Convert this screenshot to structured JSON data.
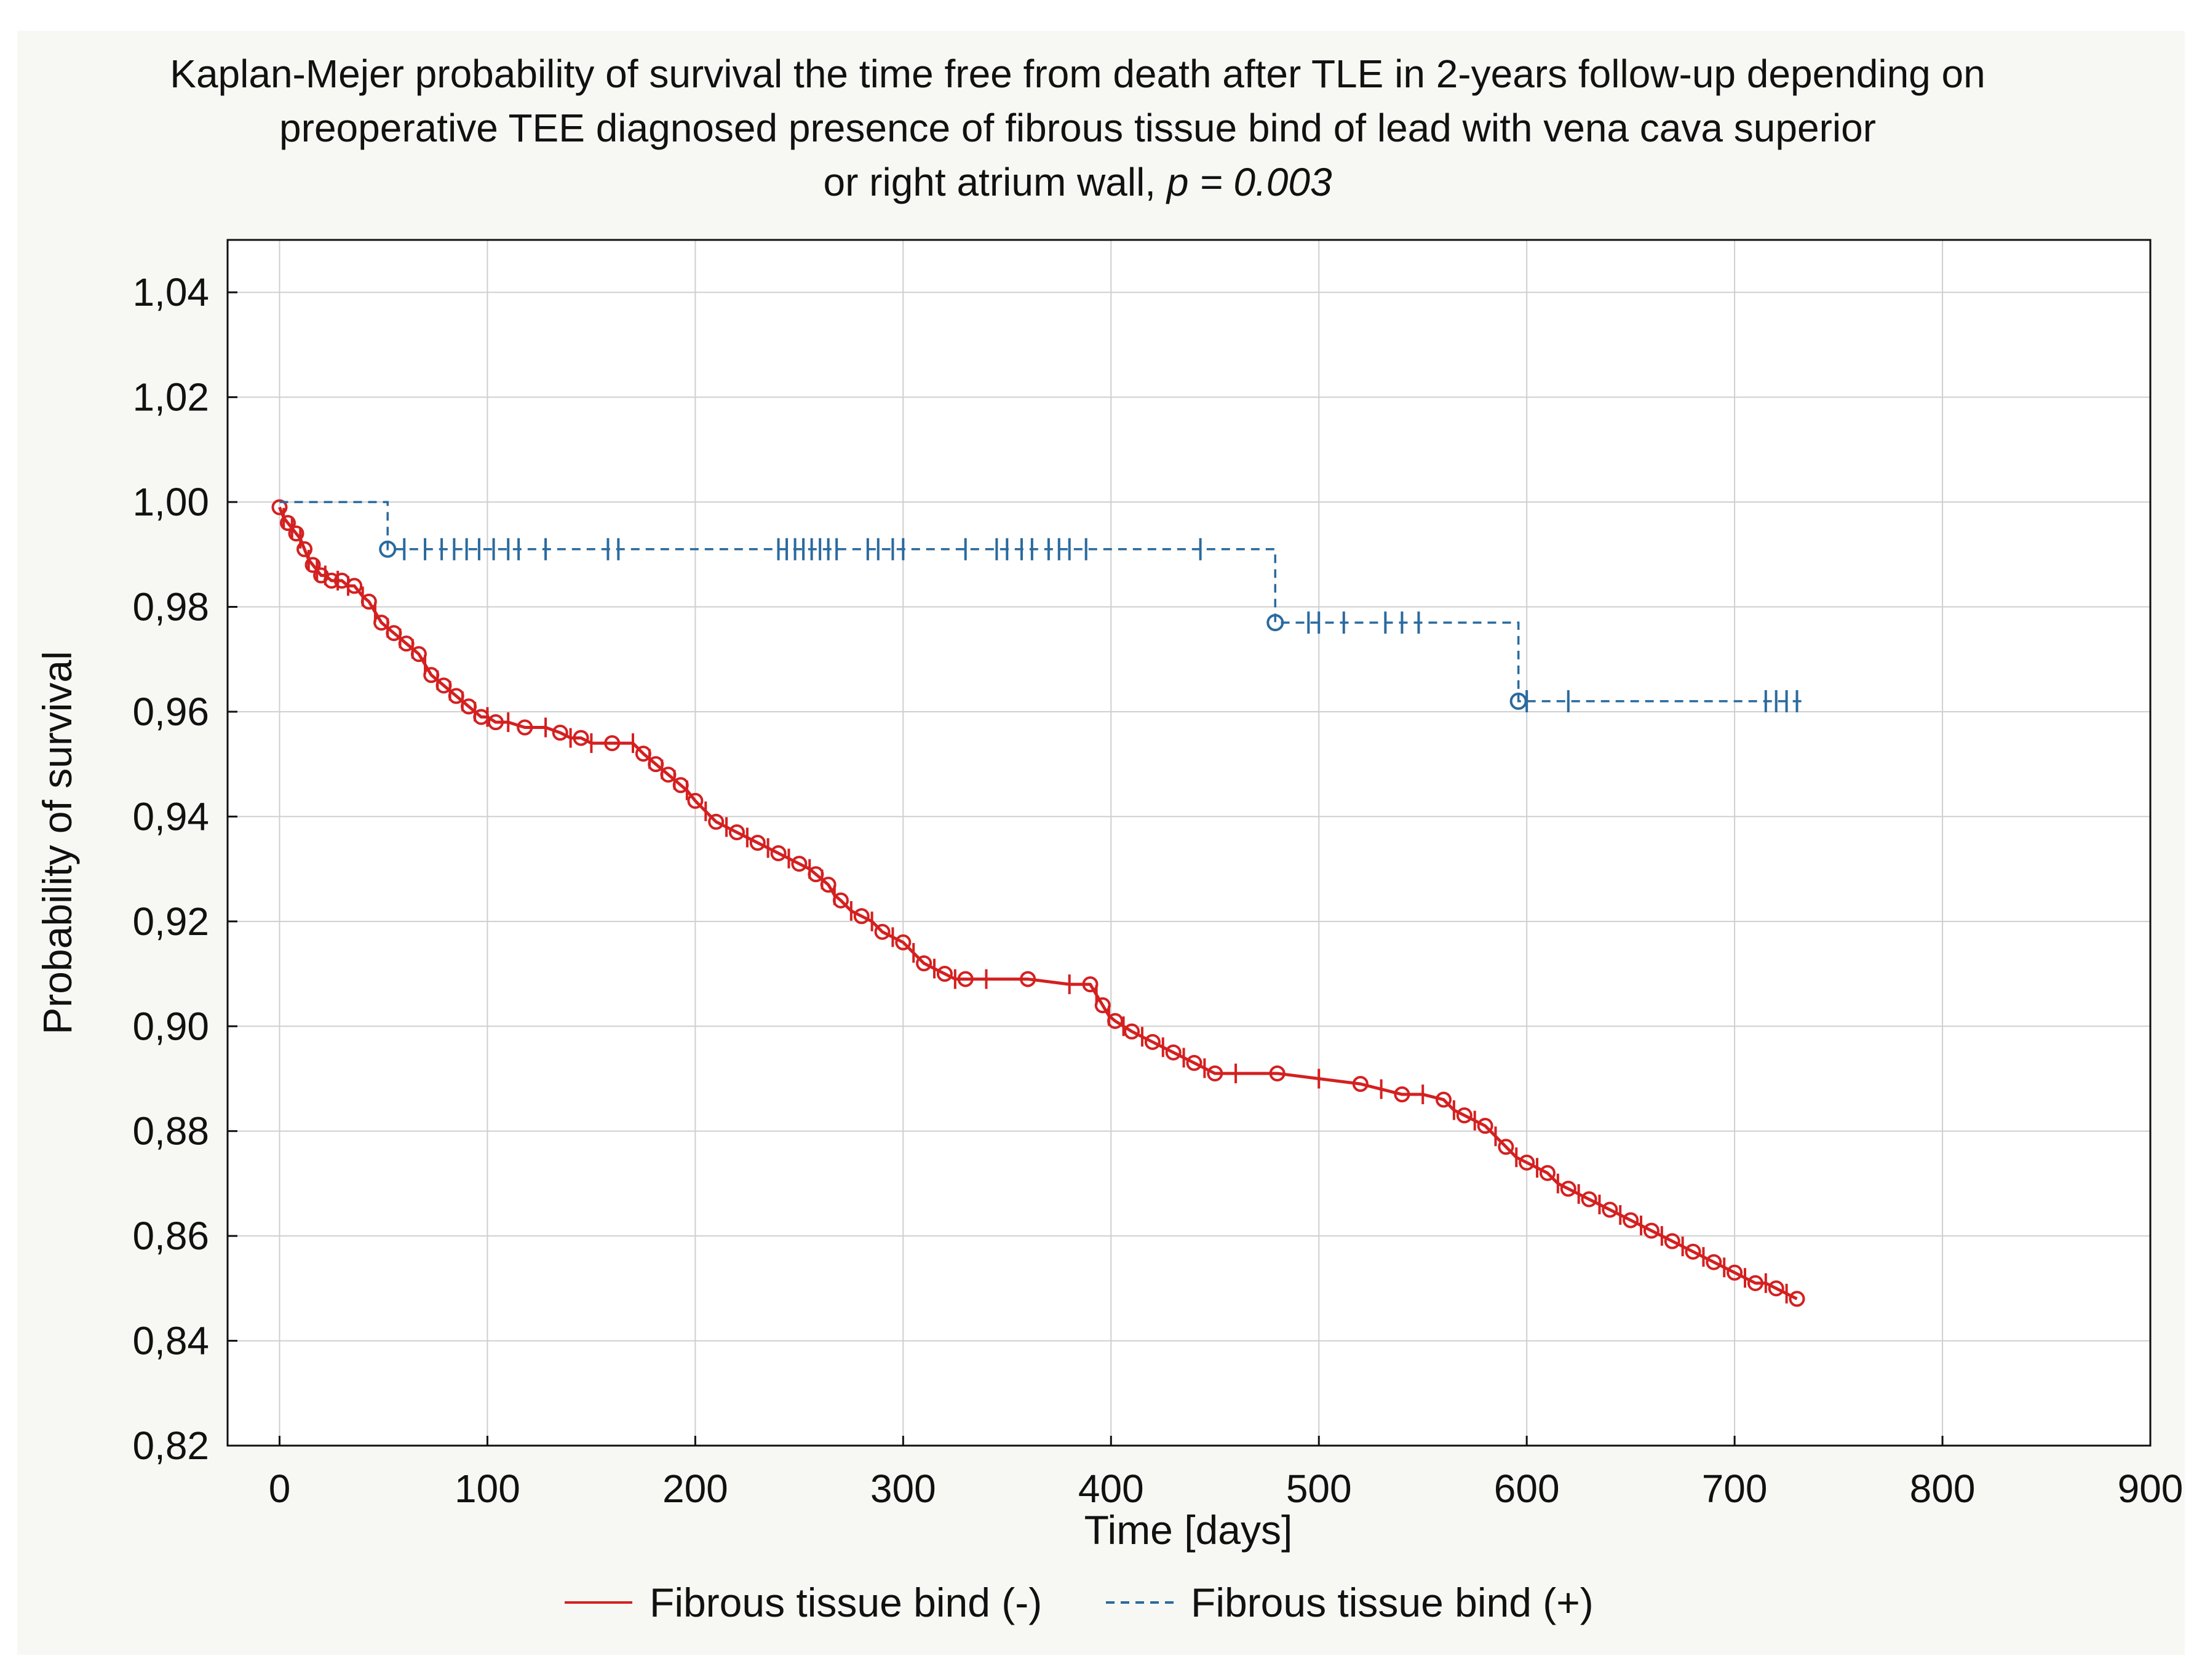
{
  "chart_data": {
    "type": "line",
    "title_lines": [
      "Kaplan-Mejer probability of survival the time free from death after TLE in 2-years follow-up depending on",
      "preoperative TEE diagnosed presence of fibrous tissue bind of lead with vena cava superior",
      "or right atrium wall, "
    ],
    "title_p_label": "p = 0.003",
    "xlabel": "Time [days]",
    "ylabel": "Probability of survival",
    "xlim": [
      -25,
      900
    ],
    "ylim": [
      0.82,
      1.05
    ],
    "x_ticks": [
      0,
      100,
      200,
      300,
      400,
      500,
      600,
      700,
      800,
      900
    ],
    "x_tick_labels": [
      "0",
      "100",
      "200",
      "300",
      "400",
      "500",
      "600",
      "700",
      "800",
      "900"
    ],
    "y_ticks": [
      0.82,
      0.84,
      0.86,
      0.88,
      0.9,
      0.92,
      0.94,
      0.96,
      0.98,
      1.0,
      1.02,
      1.04
    ],
    "y_tick_labels": [
      "0,82",
      "0,84",
      "0,86",
      "0,88",
      "0,90",
      "0,92",
      "0,94",
      "0,96",
      "0,98",
      "1,00",
      "1,02",
      "1,04"
    ],
    "grid": true,
    "legend_position": "bottom",
    "colors": {
      "negative": "#d42020",
      "positive": "#2a6a9e",
      "grid": "#cfcfcf",
      "frame_bg": "#f7f7f3"
    },
    "series": [
      {
        "name": "Fibrous tissue bind (-)",
        "style": "solid",
        "color": "#d42020",
        "x": [
          0,
          2,
          4,
          6,
          8,
          10,
          12,
          14,
          16,
          18,
          20,
          22,
          25,
          28,
          30,
          33,
          36,
          40,
          43,
          46,
          49,
          52,
          55,
          58,
          61,
          64,
          67,
          70,
          73,
          76,
          79,
          82,
          85,
          88,
          91,
          94,
          97,
          100,
          104,
          110,
          118,
          128,
          135,
          140,
          145,
          150,
          160,
          170,
          175,
          178,
          181,
          184,
          187,
          190,
          193,
          196,
          200,
          205,
          210,
          215,
          220,
          225,
          230,
          235,
          240,
          245,
          250,
          255,
          258,
          261,
          264,
          267,
          270,
          275,
          280,
          285,
          290,
          295,
          300,
          305,
          310,
          315,
          320,
          325,
          330,
          340,
          360,
          380,
          390,
          393,
          396,
          399,
          402,
          406,
          410,
          415,
          420,
          425,
          430,
          435,
          440,
          445,
          450,
          460,
          480,
          500,
          520,
          530,
          540,
          550,
          560,
          565,
          570,
          575,
          580,
          585,
          590,
          595,
          600,
          605,
          610,
          615,
          620,
          625,
          630,
          635,
          640,
          645,
          650,
          655,
          660,
          665,
          670,
          675,
          680,
          685,
          690,
          695,
          700,
          705,
          710,
          715,
          720,
          725,
          730
        ],
        "y": [
          0.999,
          0.997,
          0.996,
          0.995,
          0.994,
          0.993,
          0.991,
          0.989,
          0.988,
          0.987,
          0.986,
          0.986,
          0.985,
          0.985,
          0.985,
          0.984,
          0.984,
          0.982,
          0.981,
          0.979,
          0.977,
          0.976,
          0.975,
          0.974,
          0.973,
          0.972,
          0.971,
          0.969,
          0.967,
          0.966,
          0.965,
          0.964,
          0.963,
          0.962,
          0.961,
          0.96,
          0.959,
          0.959,
          0.958,
          0.958,
          0.957,
          0.957,
          0.956,
          0.955,
          0.955,
          0.954,
          0.954,
          0.954,
          0.952,
          0.951,
          0.95,
          0.949,
          0.948,
          0.947,
          0.946,
          0.945,
          0.943,
          0.941,
          0.939,
          0.938,
          0.937,
          0.936,
          0.935,
          0.934,
          0.933,
          0.932,
          0.931,
          0.93,
          0.929,
          0.928,
          0.927,
          0.925,
          0.924,
          0.922,
          0.921,
          0.92,
          0.918,
          0.917,
          0.916,
          0.914,
          0.912,
          0.911,
          0.91,
          0.909,
          0.909,
          0.909,
          0.909,
          0.908,
          0.908,
          0.906,
          0.904,
          0.902,
          0.901,
          0.9,
          0.899,
          0.898,
          0.897,
          0.896,
          0.895,
          0.894,
          0.893,
          0.892,
          0.891,
          0.891,
          0.891,
          0.89,
          0.889,
          0.888,
          0.887,
          0.887,
          0.886,
          0.884,
          0.883,
          0.882,
          0.881,
          0.879,
          0.877,
          0.875,
          0.874,
          0.873,
          0.872,
          0.87,
          0.869,
          0.868,
          0.867,
          0.866,
          0.865,
          0.864,
          0.863,
          0.862,
          0.861,
          0.86,
          0.859,
          0.858,
          0.857,
          0.856,
          0.855,
          0.854,
          0.853,
          0.852,
          0.851,
          0.851,
          0.85,
          0.849,
          0.848
        ]
      },
      {
        "name": "Fibrous tissue bind (+)",
        "style": "dashed",
        "color": "#2a6a9e",
        "steps": [
          [
            0,
            1.0
          ],
          [
            52,
            0.991
          ],
          [
            479,
            0.977
          ],
          [
            596,
            0.962
          ],
          [
            735,
            0.962
          ]
        ],
        "events": [
          [
            52,
            0.991
          ],
          [
            479,
            0.977
          ],
          [
            596,
            0.962
          ]
        ],
        "censored": [
          [
            60,
            0.991
          ],
          [
            70,
            0.991
          ],
          [
            78,
            0.991
          ],
          [
            84,
            0.991
          ],
          [
            90,
            0.991
          ],
          [
            96,
            0.991
          ],
          [
            103,
            0.991
          ],
          [
            110,
            0.991
          ],
          [
            115,
            0.991
          ],
          [
            128,
            0.991
          ],
          [
            158,
            0.991
          ],
          [
            163,
            0.991
          ],
          [
            240,
            0.991
          ],
          [
            244,
            0.991
          ],
          [
            248,
            0.991
          ],
          [
            252,
            0.991
          ],
          [
            256,
            0.991
          ],
          [
            260,
            0.991
          ],
          [
            264,
            0.991
          ],
          [
            268,
            0.991
          ],
          [
            283,
            0.991
          ],
          [
            288,
            0.991
          ],
          [
            295,
            0.991
          ],
          [
            300,
            0.991
          ],
          [
            330,
            0.991
          ],
          [
            345,
            0.991
          ],
          [
            350,
            0.991
          ],
          [
            357,
            0.991
          ],
          [
            362,
            0.991
          ],
          [
            370,
            0.991
          ],
          [
            375,
            0.991
          ],
          [
            380,
            0.991
          ],
          [
            388,
            0.991
          ],
          [
            443,
            0.991
          ],
          [
            495,
            0.977
          ],
          [
            500,
            0.977
          ],
          [
            512,
            0.977
          ],
          [
            532,
            0.977
          ],
          [
            540,
            0.977
          ],
          [
            548,
            0.977
          ],
          [
            600,
            0.962
          ],
          [
            620,
            0.962
          ],
          [
            715,
            0.962
          ],
          [
            720,
            0.962
          ],
          [
            725,
            0.962
          ],
          [
            730,
            0.962
          ]
        ]
      }
    ],
    "legend": [
      {
        "label": "Fibrous tissue bind (-)",
        "style": "solid",
        "color": "#d42020"
      },
      {
        "label": "Fibrous tissue bind (+)",
        "style": "dashed",
        "color": "#2a6a9e"
      }
    ]
  }
}
